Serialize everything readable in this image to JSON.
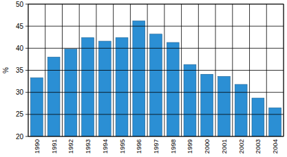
{
  "chart_data": {
    "type": "bar",
    "y_label": "%",
    "categories": [
      "1990",
      "1991",
      "1992",
      "1993",
      "1994",
      "1995",
      "1996",
      "1997",
      "1998",
      "1999",
      "2000",
      "2001",
      "2002",
      "2003",
      "2004"
    ],
    "values": [
      33.3,
      38,
      39.8,
      42.4,
      41.6,
      42.4,
      46.2,
      43.2,
      41.3,
      36.3,
      34.1,
      33.6,
      31.8,
      28.7,
      26.5
    ],
    "color": "#2b8fd4",
    "ylim": [
      20,
      50
    ],
    "yticks": [
      20,
      25,
      30,
      35,
      40,
      45,
      50
    ],
    "grid": true
  }
}
